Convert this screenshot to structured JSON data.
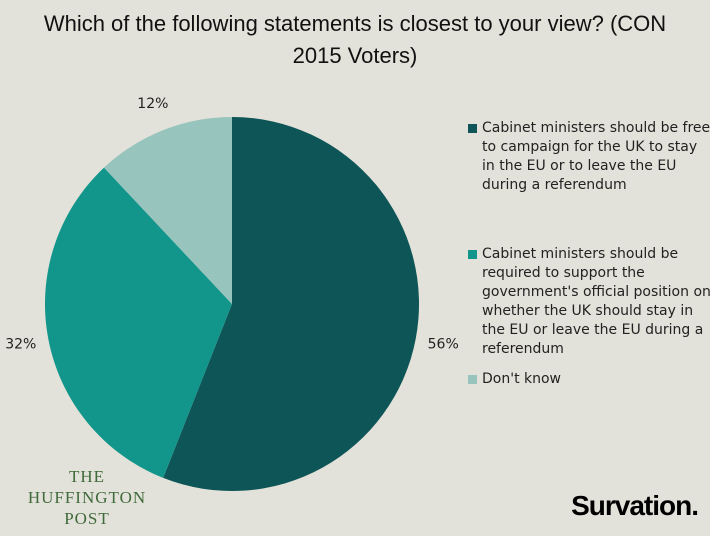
{
  "chart_data": {
    "type": "pie",
    "title": "Which of the following statements is closest to your view? (CON 2015 Voters)",
    "categories": [
      "Cabinet ministers should be free to campaign for the UK to stay in the EU or to leave the EU during a referendum",
      "Cabinet ministers should be required to support the government's official position on whether the UK should stay in the EU or leave the EU during a referendum",
      "Don't know"
    ],
    "values": [
      56,
      32,
      12
    ],
    "value_labels": [
      "56%",
      "32%",
      "12%"
    ],
    "colors": [
      "#0e5557",
      "#12968b",
      "#97c4bd"
    ],
    "legend": "right"
  },
  "branding": {
    "publisher": "THE HUFFINGTON POST",
    "pollster": "Survation."
  }
}
